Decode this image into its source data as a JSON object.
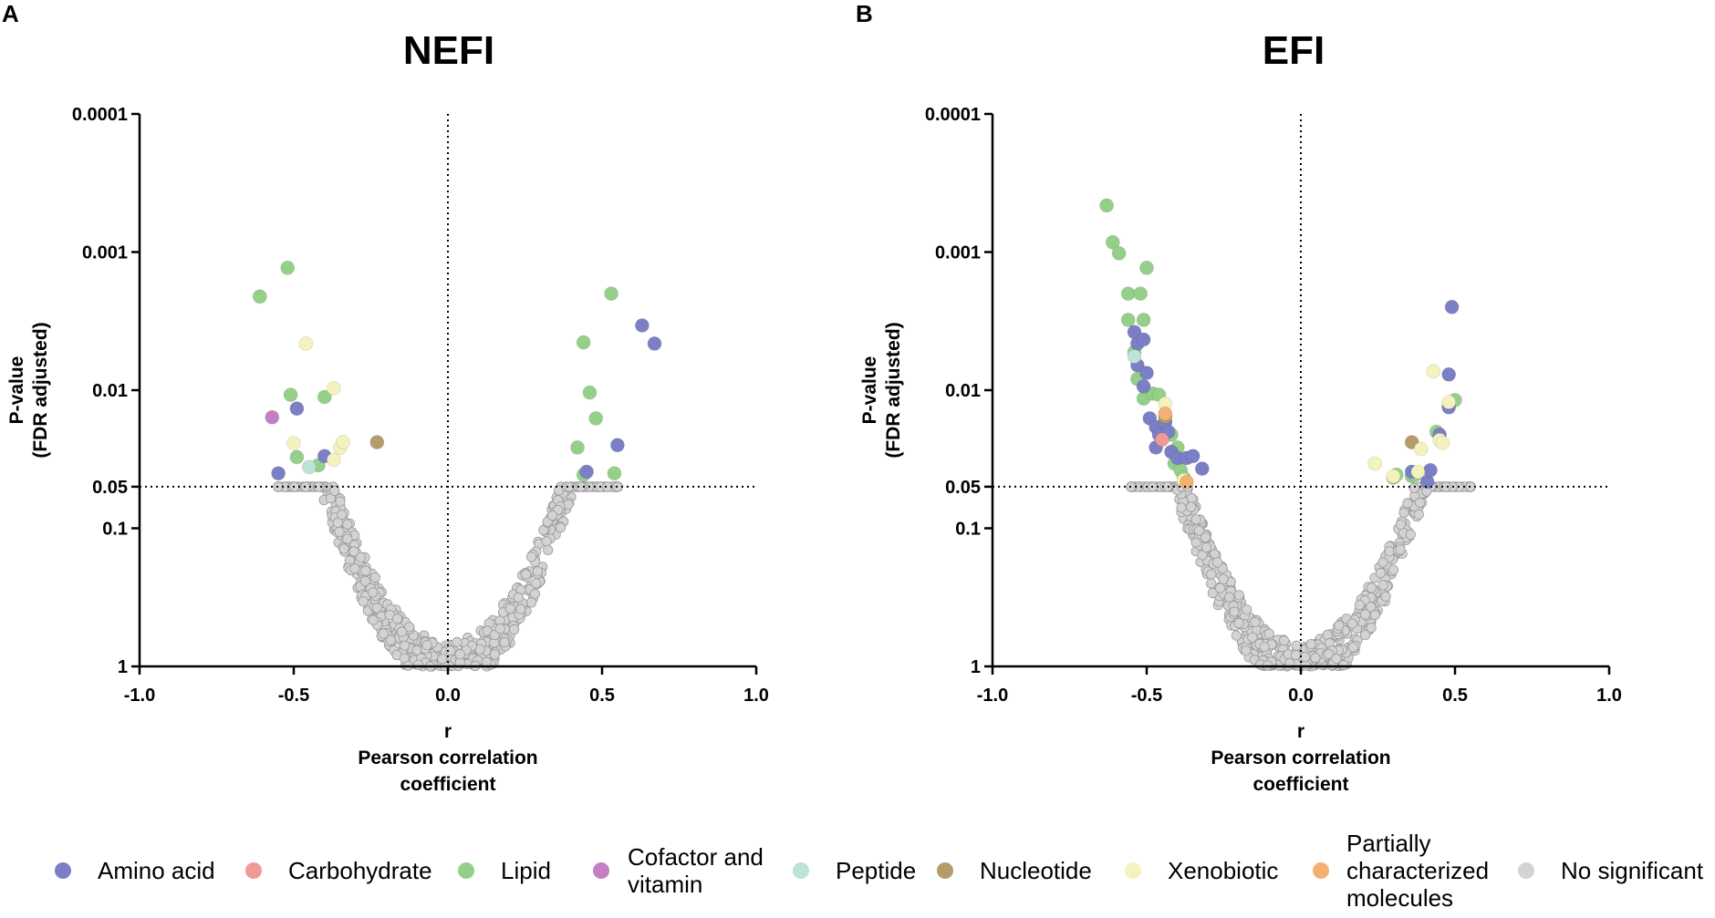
{
  "legend": [
    {
      "label": "Amino acid",
      "color": "#7b7fc6",
      "key": "amino"
    },
    {
      "label": "Carbohydrate",
      "color": "#f09a98",
      "key": "carb"
    },
    {
      "label": "Lipid",
      "color": "#94d08a",
      "key": "lipid"
    },
    {
      "label": "Cofactor and vitamin",
      "lines": [
        "Cofactor and",
        "vitamin"
      ],
      "color": "#c47fc5",
      "key": "cofactor"
    },
    {
      "label": "Peptide",
      "color": "#bfe3d6",
      "key": "peptide"
    },
    {
      "label": "Nucleotide",
      "color": "#b59c6b",
      "key": "nucleotide"
    },
    {
      "label": "Xenobiotic",
      "color": "#f4f2bd",
      "key": "xeno"
    },
    {
      "label": "Partially characterized molecules",
      "lines": [
        "Partially",
        "characterized",
        "molecules"
      ],
      "color": "#f2b073",
      "key": "partial"
    },
    {
      "label": "No significant",
      "color": "#d3d3d3",
      "key": "ns"
    }
  ],
  "chart_data": [
    {
      "type": "scatter",
      "panel": "A",
      "title": "NEFI",
      "xlabel": [
        "r",
        "Pearson correlation",
        "coefficient"
      ],
      "ylabel": [
        "P-value",
        "(FDR adjusted)"
      ],
      "xlim": [
        -1.0,
        1.0
      ],
      "ylim": [
        1,
        0.0001
      ],
      "yscale": "log-reversed",
      "xticks": [
        "-1.0",
        "-0.5",
        "0.0",
        "0.5",
        "1.0"
      ],
      "yticks": [
        "0.0001",
        "0.001",
        "0.01",
        "0.05",
        "0.1",
        "1"
      ],
      "reference_lines": {
        "x": 0.0,
        "y": 0.05
      },
      "background": {
        "seed": 7,
        "count": 720
      },
      "series": [
        {
          "name": "Lipid",
          "points": [
            [
              -0.61,
              0.0021
            ],
            [
              -0.52,
              0.0013
            ],
            [
              -0.51,
              0.0108
            ],
            [
              -0.49,
              0.0305
            ],
            [
              -0.42,
              0.035
            ],
            [
              -0.4,
              0.0112
            ],
            [
              0.42,
              0.026
            ],
            [
              0.44,
              0.041
            ],
            [
              0.44,
              0.0045
            ],
            [
              0.46,
              0.0104
            ],
            [
              0.48,
              0.016
            ],
            [
              0.53,
              0.002
            ],
            [
              0.54,
              0.04
            ]
          ]
        },
        {
          "name": "Amino acid",
          "points": [
            [
              -0.55,
              0.04
            ],
            [
              -0.49,
              0.0136
            ],
            [
              -0.4,
              0.03
            ],
            [
              0.45,
              0.039
            ],
            [
              0.55,
              0.025
            ],
            [
              0.63,
              0.0034
            ],
            [
              0.67,
              0.0046
            ]
          ]
        },
        {
          "name": "Cofactor and vitamin",
          "points": [
            [
              -0.57,
              0.0157
            ]
          ]
        },
        {
          "name": "Peptide",
          "points": [
            [
              -0.45,
              0.036
            ]
          ]
        },
        {
          "name": "Nucleotide",
          "points": [
            [
              -0.23,
              0.0238
            ]
          ]
        },
        {
          "name": "Xenobiotic",
          "points": [
            [
              -0.5,
              0.0242
            ],
            [
              -0.46,
              0.0046
            ],
            [
              -0.37,
              0.0097
            ],
            [
              -0.35,
              0.0262
            ],
            [
              -0.34,
              0.0237
            ],
            [
              -0.37,
              0.032
            ]
          ]
        }
      ]
    },
    {
      "type": "scatter",
      "panel": "B",
      "title": "EFI",
      "xlabel": [
        "r",
        "Pearson correlation",
        "coefficient"
      ],
      "ylabel": [
        "P-value",
        "(FDR adjusted)"
      ],
      "xlim": [
        -1.0,
        1.0
      ],
      "ylim": [
        1,
        0.0001
      ],
      "yscale": "log-reversed",
      "xticks": [
        "-1.0",
        "-0.5",
        "0.0",
        "0.5",
        "1.0"
      ],
      "yticks": [
        "0.0001",
        "0.001",
        "0.01",
        "0.05",
        "0.1",
        "1"
      ],
      "reference_lines": {
        "x": 0.0,
        "y": 0.05
      },
      "background": {
        "seed": 23,
        "count": 720
      },
      "series": [
        {
          "name": "Lipid",
          "points": [
            [
              -0.63,
              0.00046
            ],
            [
              -0.61,
              0.00085
            ],
            [
              -0.59,
              0.00102
            ],
            [
              -0.56,
              0.002
            ],
            [
              -0.56,
              0.0031
            ],
            [
              -0.54,
              0.0053
            ],
            [
              -0.52,
              0.002
            ],
            [
              -0.51,
              0.0031
            ],
            [
              -0.5,
              0.0013
            ],
            [
              -0.53,
              0.0083
            ],
            [
              -0.51,
              0.0115
            ],
            [
              -0.48,
              0.0106
            ],
            [
              -0.46,
              0.0108
            ],
            [
              -0.44,
              0.017
            ],
            [
              -0.42,
              0.021
            ],
            [
              -0.4,
              0.026
            ],
            [
              -0.41,
              0.034
            ],
            [
              -0.39,
              0.038
            ],
            [
              -0.38,
              0.043
            ],
            [
              0.3,
              0.043
            ],
            [
              0.31,
              0.041
            ],
            [
              0.36,
              0.042
            ],
            [
              0.37,
              0.041
            ],
            [
              0.44,
              0.02
            ],
            [
              0.48,
              0.013
            ],
            [
              0.5,
              0.0118
            ]
          ]
        },
        {
          "name": "Amino acid",
          "points": [
            [
              -0.54,
              0.0038
            ],
            [
              -0.53,
              0.0046
            ],
            [
              -0.53,
              0.0066
            ],
            [
              -0.51,
              0.0043
            ],
            [
              -0.5,
              0.0075
            ],
            [
              -0.51,
              0.0094
            ],
            [
              -0.49,
              0.016
            ],
            [
              -0.47,
              0.0185
            ],
            [
              -0.46,
              0.021
            ],
            [
              -0.47,
              0.026
            ],
            [
              -0.44,
              0.017
            ],
            [
              -0.43,
              0.02
            ],
            [
              -0.42,
              0.028
            ],
            [
              -0.4,
              0.031
            ],
            [
              -0.37,
              0.031
            ],
            [
              -0.35,
              0.03
            ],
            [
              -0.32,
              0.037
            ],
            [
              0.36,
              0.039
            ],
            [
              0.41,
              0.046
            ],
            [
              0.42,
              0.038
            ],
            [
              0.45,
              0.021
            ],
            [
              0.48,
              0.0077
            ],
            [
              0.48,
              0.0133
            ],
            [
              0.49,
              0.0025
            ]
          ]
        },
        {
          "name": "Carbohydrate",
          "points": [
            [
              -0.45,
              0.0228
            ]
          ]
        },
        {
          "name": "Peptide",
          "points": [
            [
              -0.54,
              0.0057
            ]
          ]
        },
        {
          "name": "Nucleotide",
          "points": [
            [
              -0.44,
              0.0155
            ],
            [
              0.36,
              0.0238
            ]
          ]
        },
        {
          "name": "Xenobiotic",
          "points": [
            [
              -0.44,
              0.0125
            ],
            [
              -0.38,
              0.0448
            ],
            [
              0.24,
              0.034
            ],
            [
              0.3,
              0.042
            ],
            [
              0.38,
              0.039
            ],
            [
              0.39,
              0.0267
            ],
            [
              0.43,
              0.0073
            ],
            [
              0.45,
              0.023
            ],
            [
              0.46,
              0.0242
            ],
            [
              0.48,
              0.0122
            ]
          ]
        },
        {
          "name": "Partially characterized molecules",
          "points": [
            [
              -0.44,
              0.0148
            ],
            [
              -0.37,
              0.0462
            ]
          ]
        }
      ]
    }
  ]
}
